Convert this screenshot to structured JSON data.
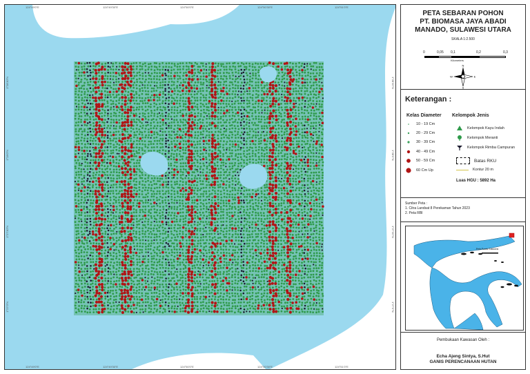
{
  "map": {
    "coord_top": [
      "124°49'0\"E",
      "124°49'30\"E",
      "124°50'0\"E",
      "124°50'30\"E",
      "124°51'0\"E"
    ],
    "coord_bottom": [
      "124°49'0\"E",
      "124°49'30\"E",
      "124°50'0\"E",
      "124°50'30\"E",
      "124°51'0\"E"
    ],
    "coord_left": [
      "1°28'30\"N",
      "1°28'0\"N",
      "1°27'30\"N",
      "1°27'0\"N"
    ],
    "coord_right": [
      "1°28'30\"N",
      "1°28'0\"N",
      "1°27'30\"N",
      "1°27'0\"N"
    ],
    "colors": {
      "sea": "#9bd9ef",
      "land": "#ffffff",
      "forest": "#2e9a4a",
      "large_tree": "#b01515",
      "mixed": "#1a1a2e"
    }
  },
  "title": {
    "line1": "PETA SEBARAN POHON",
    "line2": "PT. BIOMASA JAYA ABADI",
    "line3": "MANADO, SULAWESI UTARA",
    "scale_label": "SKALA 1:2.500",
    "scale_ticks": [
      "0",
      "0,05",
      "0,1",
      "0,2",
      "0,3"
    ],
    "scale_unit": "Kilometers",
    "north": "N",
    "south": "S",
    "east": "E",
    "west": "W"
  },
  "legend": {
    "heading": "Keterangan :",
    "diameter_heading": "Kelas Diameter",
    "diameter_items": [
      "10 - 19 Cm",
      "20 - 29 Cm",
      "30 - 39 Cm",
      "40 - 49 Cm",
      "50 - 59 Cm",
      "60 Cm Up"
    ],
    "jenis_heading": "Kelompok Jenis",
    "jenis_items": [
      "Kelompok Kayu Indah",
      "Kelompok Meranti",
      "Kelompok Rimba Campuran"
    ],
    "batas": "Batas RKU",
    "kontur": "Kontur 20 m",
    "luas": "Luas HGU : 5892 Ha"
  },
  "sumber": {
    "heading": "Sumber Peta :",
    "items": [
      "1. Citra Landsat 8 Perekaman Tahun 2023",
      "2. Peta RBI"
    ]
  },
  "inset": {
    "label": "Peta Posisi Sulawesi"
  },
  "footer": {
    "pembukaan": "Pembukaan Kawasan Oleh :",
    "name": "Echa Ajeng Sintya, S.Hut",
    "role": "GANIS PERENCANAAN HUTAN"
  }
}
